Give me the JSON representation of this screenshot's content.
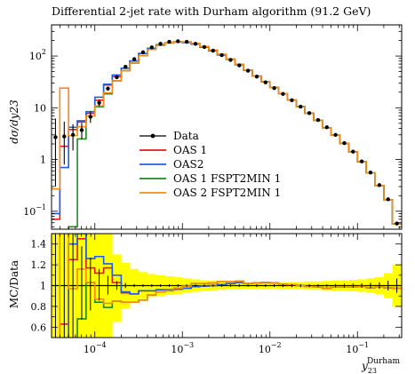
{
  "chart_data": [
    {
      "type": "line",
      "title": "Differential 2-jet rate with Durham algorithm (91.2 GeV)",
      "ylabel": "dσ/dy23",
      "yscale": "log",
      "xscale": "log",
      "xlim": [
        3.2e-05,
        0.32
      ],
      "ylim": [
        0.045,
        400
      ],
      "y_ticks": [
        {
          "value": 0.1,
          "base": "10",
          "exp": "−1"
        },
        {
          "value": 1,
          "base": "1",
          "exp": ""
        },
        {
          "value": 10,
          "base": "10",
          "exp": ""
        },
        {
          "value": 100,
          "base": "10",
          "exp": "2"
        }
      ],
      "legend_position": "center-left",
      "legend": [
        {
          "label": "Data",
          "color": "#000000",
          "marker": "point"
        },
        {
          "label": "OAS 1",
          "color": "#e41a1c"
        },
        {
          "label": "OAS2",
          "color": "#1f5fe0"
        },
        {
          "label": "OAS 1 FSPT2MIN 1",
          "color": "#1e8a1e"
        },
        {
          "label": "OAS 2 FSPT2MIN 1",
          "color": "#f28c1a"
        }
      ],
      "x_bin_edges": [
        3.16e-05,
        3.98e-05,
        5.01e-05,
        6.31e-05,
        7.94e-05,
        0.0001,
        0.000126,
        0.000158,
        0.0002,
        0.000251,
        0.000316,
        0.000398,
        0.000501,
        0.000631,
        0.000794,
        0.001,
        0.00126,
        0.00158,
        0.002,
        0.00251,
        0.00316,
        0.00398,
        0.00501,
        0.00631,
        0.00794,
        0.01,
        0.0126,
        0.0158,
        0.02,
        0.0251,
        0.0316,
        0.0398,
        0.0501,
        0.0631,
        0.0794,
        0.1,
        0.126,
        0.158,
        0.2,
        0.251,
        0.316
      ],
      "data": {
        "x": [
          3.55e-05,
          4.47e-05,
          5.62e-05,
          7.08e-05,
          8.91e-05,
          0.000112,
          0.000141,
          0.000178,
          0.000224,
          0.000282,
          0.000355,
          0.000447,
          0.000562,
          0.000708,
          0.000891,
          0.00112,
          0.00141,
          0.00178,
          0.00224,
          0.00282,
          0.00355,
          0.00447,
          0.00562,
          0.00708,
          0.00891,
          0.0112,
          0.0141,
          0.0178,
          0.0224,
          0.0282,
          0.0355,
          0.0447,
          0.0562,
          0.0708,
          0.0891,
          0.112,
          0.141,
          0.178,
          0.224,
          0.282
        ],
        "y": [
          2.7,
          2.8,
          3.0,
          3.7,
          6.7,
          12.5,
          23.5,
          39,
          62,
          87,
          118,
          147,
          172,
          188,
          193,
          188,
          172,
          149,
          127,
          104,
          84,
          66,
          52,
          40,
          31,
          24,
          18.5,
          14,
          10.5,
          7.9,
          5.8,
          4.2,
          3.0,
          2.08,
          1.42,
          0.92,
          0.56,
          0.32,
          0.17,
          0.058
        ],
        "yerr_low": [
          2.4,
          2.0,
          1.5,
          1.2,
          1.6,
          1.8,
          2.0,
          1.6,
          1.5,
          1.2,
          1.5,
          1.8,
          2.0,
          2.2,
          2.3,
          2.2,
          2.0,
          1.8,
          1.5,
          1.2,
          1.0,
          0.8,
          0.6,
          0.5,
          0.4,
          0.3,
          0.25,
          0.2,
          0.15,
          0.11,
          0.08,
          0.06,
          0.05,
          0.04,
          0.03,
          0.02,
          0.015,
          0.01,
          0.008,
          0.004
        ],
        "yerr_high": [
          3.5,
          2.6,
          1.8,
          1.4,
          1.8,
          2.0,
          2.2,
          1.7,
          1.6,
          1.3,
          1.6,
          1.9,
          2.1,
          2.3,
          2.4,
          2.3,
          2.1,
          1.9,
          1.6,
          1.3,
          1.1,
          0.9,
          0.7,
          0.5,
          0.4,
          0.3,
          0.25,
          0.2,
          0.15,
          0.11,
          0.08,
          0.06,
          0.05,
          0.04,
          0.03,
          0.02,
          0.015,
          0.01,
          0.008,
          0.004
        ]
      },
      "mc_series": [
        {
          "name": "OAS 1",
          "color": "#e41a1c",
          "y": [
            0.07,
            1.8,
            3.8,
            5.3,
            7.8,
            14.0,
            27.5,
            40,
            58,
            80,
            112,
            140,
            165,
            180,
            186,
            183,
            170,
            148,
            127,
            105,
            86,
            68,
            53,
            41,
            32,
            24.6,
            18.8,
            14.1,
            10.5,
            7.8,
            5.7,
            4.1,
            2.95,
            2.05,
            1.4,
            0.91,
            0.55,
            0.315,
            0.167,
            0.057
          ]
        },
        {
          "name": "OAS2",
          "color": "#1f5fe0",
          "y": [
            0.09,
            0.7,
            4.2,
            5.6,
            8.4,
            16.0,
            28.5,
            43,
            58,
            80,
            112,
            140,
            165,
            180,
            186,
            183,
            170,
            148,
            127,
            105,
            86,
            68,
            53,
            41,
            32,
            24.6,
            18.8,
            14.1,
            10.5,
            7.8,
            5.7,
            4.1,
            2.95,
            2.05,
            1.4,
            0.91,
            0.55,
            0.315,
            0.167,
            0.057
          ]
        },
        {
          "name": "OAS 1 FSPT2MIN 1",
          "color": "#1e8a1e",
          "y": [
            0.03,
            0.04,
            0.05,
            2.5,
            6.9,
            10.5,
            18.5,
            33,
            52,
            73,
            102,
            134,
            161,
            179,
            188,
            187,
            176,
            152,
            130,
            108,
            87,
            69,
            53,
            41,
            32,
            24.6,
            18.8,
            14.1,
            10.5,
            7.8,
            5.7,
            4.1,
            2.95,
            2.05,
            1.4,
            0.91,
            0.55,
            0.315,
            0.167,
            0.057
          ]
        },
        {
          "name": "OAS 2 FSPT2MIN 1",
          "color": "#f28c1a",
          "y": [
            0.27,
            24.0,
            2.9,
            4.3,
            6.9,
            10.9,
            19.5,
            33,
            52,
            73,
            102,
            134,
            161,
            179,
            188,
            187,
            176,
            152,
            130,
            108,
            87,
            69,
            53,
            41,
            32,
            24.6,
            18.8,
            14.1,
            10.5,
            7.8,
            5.7,
            4.1,
            2.95,
            2.05,
            1.4,
            0.91,
            0.55,
            0.315,
            0.167,
            0.057
          ]
        }
      ]
    },
    {
      "type": "line",
      "title": "",
      "ylabel": "MC/Data",
      "xlabel": "y23^Durham",
      "xlabel_main": "y",
      "xlabel_sub": "23",
      "xlabel_sup": "Durham",
      "xscale": "log",
      "xlim": [
        3.2e-05,
        0.32
      ],
      "ylim": [
        0.5,
        1.5
      ],
      "y_ticks": [
        0.6,
        0.8,
        1,
        1.2,
        1.4
      ],
      "y_tick_labels": [
        "0.6",
        "0.8",
        "1",
        "1.2",
        "1.4"
      ],
      "x_ticks": [
        {
          "value": 0.0001,
          "base": "10",
          "exp": "−4"
        },
        {
          "value": 0.001,
          "base": "10",
          "exp": "−3"
        },
        {
          "value": 0.01,
          "base": "10",
          "exp": "−2"
        },
        {
          "value": 0.1,
          "base": "10",
          "exp": "−1"
        }
      ],
      "band_color": "#ffff00",
      "band": {
        "low": [
          0.4,
          0.4,
          0.4,
          0.4,
          0.4,
          0.4,
          0.45,
          0.65,
          0.78,
          0.84,
          0.87,
          0.89,
          0.9,
          0.91,
          0.92,
          0.93,
          0.94,
          0.95,
          0.955,
          0.96,
          0.965,
          0.965,
          0.97,
          0.97,
          0.97,
          0.97,
          0.97,
          0.965,
          0.965,
          0.96,
          0.96,
          0.955,
          0.95,
          0.95,
          0.945,
          0.94,
          0.93,
          0.92,
          0.88,
          0.8
        ],
        "high": [
          1.5,
          1.5,
          1.5,
          1.5,
          1.5,
          1.5,
          1.5,
          1.3,
          1.22,
          1.16,
          1.13,
          1.11,
          1.1,
          1.09,
          1.08,
          1.07,
          1.06,
          1.05,
          1.045,
          1.04,
          1.035,
          1.035,
          1.03,
          1.03,
          1.03,
          1.03,
          1.03,
          1.035,
          1.035,
          1.04,
          1.04,
          1.045,
          1.05,
          1.05,
          1.055,
          1.06,
          1.07,
          1.08,
          1.12,
          1.2
        ]
      },
      "ratios": [
        {
          "name": "OAS 1",
          "color": "#e41a1c",
          "y": [
            0.3,
            0.63,
            1.25,
            1.45,
            1.17,
            1.12,
            1.17,
            1.03,
            0.93,
            0.92,
            0.95,
            0.95,
            0.96,
            0.96,
            0.965,
            0.975,
            0.99,
            0.995,
            1.0,
            1.01,
            1.02,
            1.03,
            1.02,
            1.025,
            1.03,
            1.025,
            1.015,
            1.01,
            1.0,
            0.99,
            0.985,
            0.975,
            0.985,
            0.985,
            0.985,
            0.99,
            0.98,
            0.985,
            0.98,
            0.975
          ]
        },
        {
          "name": "OAS2",
          "color": "#1f5fe0",
          "y": [
            0.35,
            0.25,
            1.4,
            1.5,
            1.26,
            1.28,
            1.21,
            1.1,
            0.94,
            0.92,
            0.95,
            0.95,
            0.96,
            0.96,
            0.965,
            0.975,
            0.99,
            0.995,
            1.0,
            1.01,
            1.02,
            1.03,
            1.02,
            1.025,
            1.03,
            1.025,
            1.015,
            1.01,
            1.0,
            0.99,
            0.985,
            0.975,
            0.985,
            0.985,
            0.985,
            0.99,
            0.98,
            0.985,
            0.98,
            0.975
          ]
        },
        {
          "name": "OAS 1 FSPT2MIN 1",
          "color": "#1e8a1e",
          "y": [
            0.01,
            0.01,
            0.01,
            0.68,
            1.03,
            0.84,
            0.79,
            0.85,
            0.84,
            0.84,
            0.86,
            0.91,
            0.94,
            0.95,
            0.975,
            0.995,
            1.02,
            1.02,
            1.025,
            1.04,
            1.04,
            1.045,
            1.02,
            1.025,
            1.03,
            1.025,
            1.015,
            1.01,
            1.0,
            0.99,
            0.985,
            0.975,
            0.985,
            0.985,
            0.985,
            0.99,
            0.98,
            0.985,
            0.98,
            0.975
          ]
        },
        {
          "name": "OAS 2 FSPT2MIN 1",
          "color": "#f28c1a",
          "y": [
            0.1,
            8.5,
            0.97,
            1.16,
            1.03,
            0.87,
            0.83,
            0.85,
            0.84,
            0.84,
            0.86,
            0.91,
            0.94,
            0.95,
            0.975,
            0.995,
            1.02,
            1.02,
            1.025,
            1.04,
            1.04,
            1.045,
            1.02,
            1.025,
            1.03,
            1.025,
            1.015,
            1.01,
            1.0,
            0.99,
            0.985,
            0.975,
            0.985,
            0.985,
            0.985,
            0.99,
            0.98,
            0.985,
            0.98,
            0.975
          ]
        }
      ]
    }
  ]
}
